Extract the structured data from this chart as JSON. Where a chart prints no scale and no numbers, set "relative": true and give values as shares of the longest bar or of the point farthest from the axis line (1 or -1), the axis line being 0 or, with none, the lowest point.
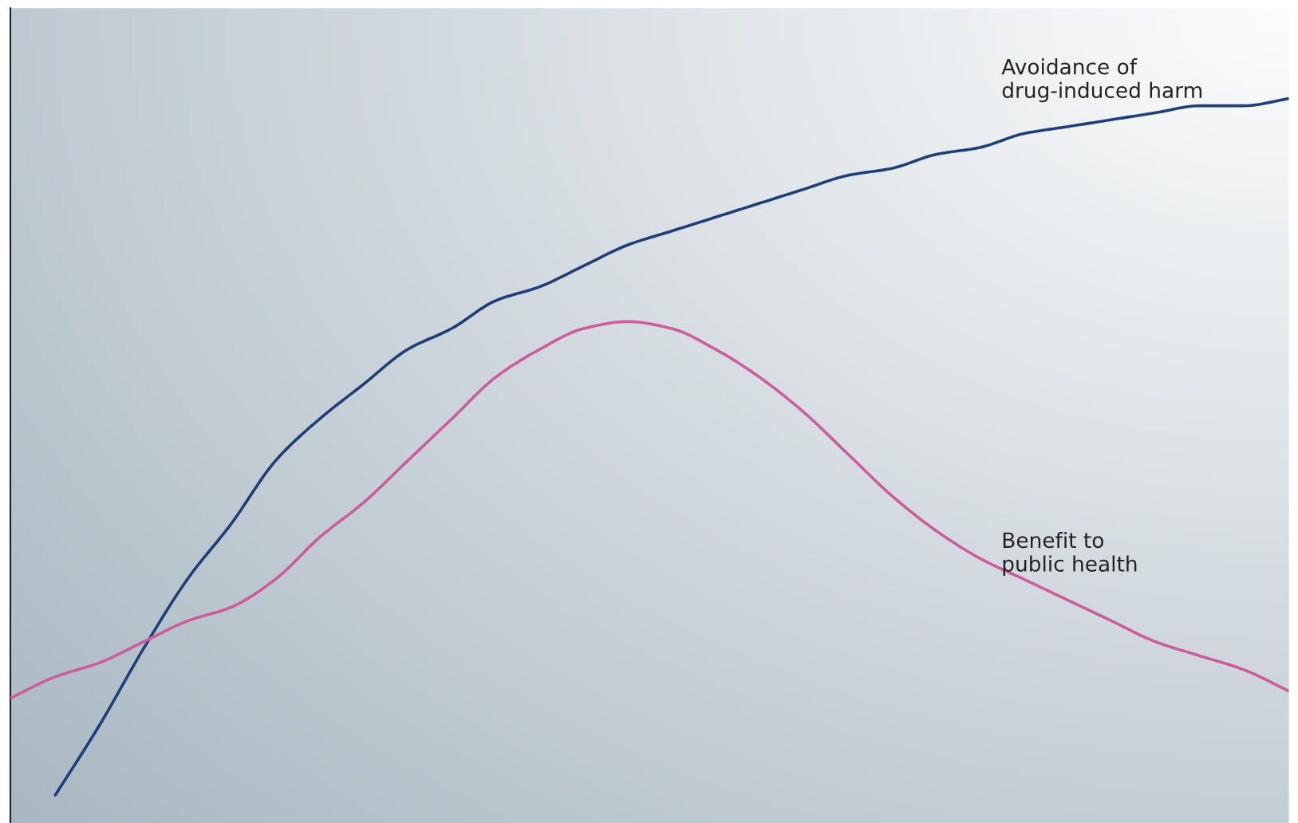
{
  "chart_data": {
    "type": "line",
    "relative": true,
    "legend": false,
    "categories": [
      null,
      null,
      null,
      null,
      null,
      null,
      null,
      null,
      null,
      null,
      null,
      null,
      null,
      null,
      null,
      null,
      null,
      null,
      null,
      null,
      null,
      null,
      null,
      null,
      null,
      null,
      null,
      null,
      null,
      null
    ],
    "series": [
      {
        "name": "Avoidance of\ndrug-induced harm",
        "color": "#1f3f78",
        "values": [
          null,
          0.0,
          0.1,
          0.21,
          0.31,
          0.39,
          0.48,
          0.54,
          0.59,
          0.64,
          0.67,
          0.71,
          0.73,
          0.76,
          0.79,
          0.81,
          0.83,
          0.85,
          0.87,
          0.89,
          0.9,
          0.92,
          0.93,
          0.95,
          0.96,
          0.97,
          0.98,
          0.99,
          0.99,
          1.0
        ]
      },
      {
        "name": "Benefit to\npublic health",
        "color": "#cc5c9c",
        "values": [
          0.14,
          0.17,
          0.19,
          0.22,
          0.25,
          0.27,
          0.31,
          0.37,
          0.42,
          0.48,
          0.54,
          0.6,
          0.64,
          0.67,
          0.68,
          0.67,
          0.64,
          0.6,
          0.55,
          0.49,
          0.43,
          0.38,
          0.34,
          0.31,
          0.28,
          0.25,
          0.22,
          0.2,
          0.18,
          0.15
        ]
      }
    ]
  }
}
